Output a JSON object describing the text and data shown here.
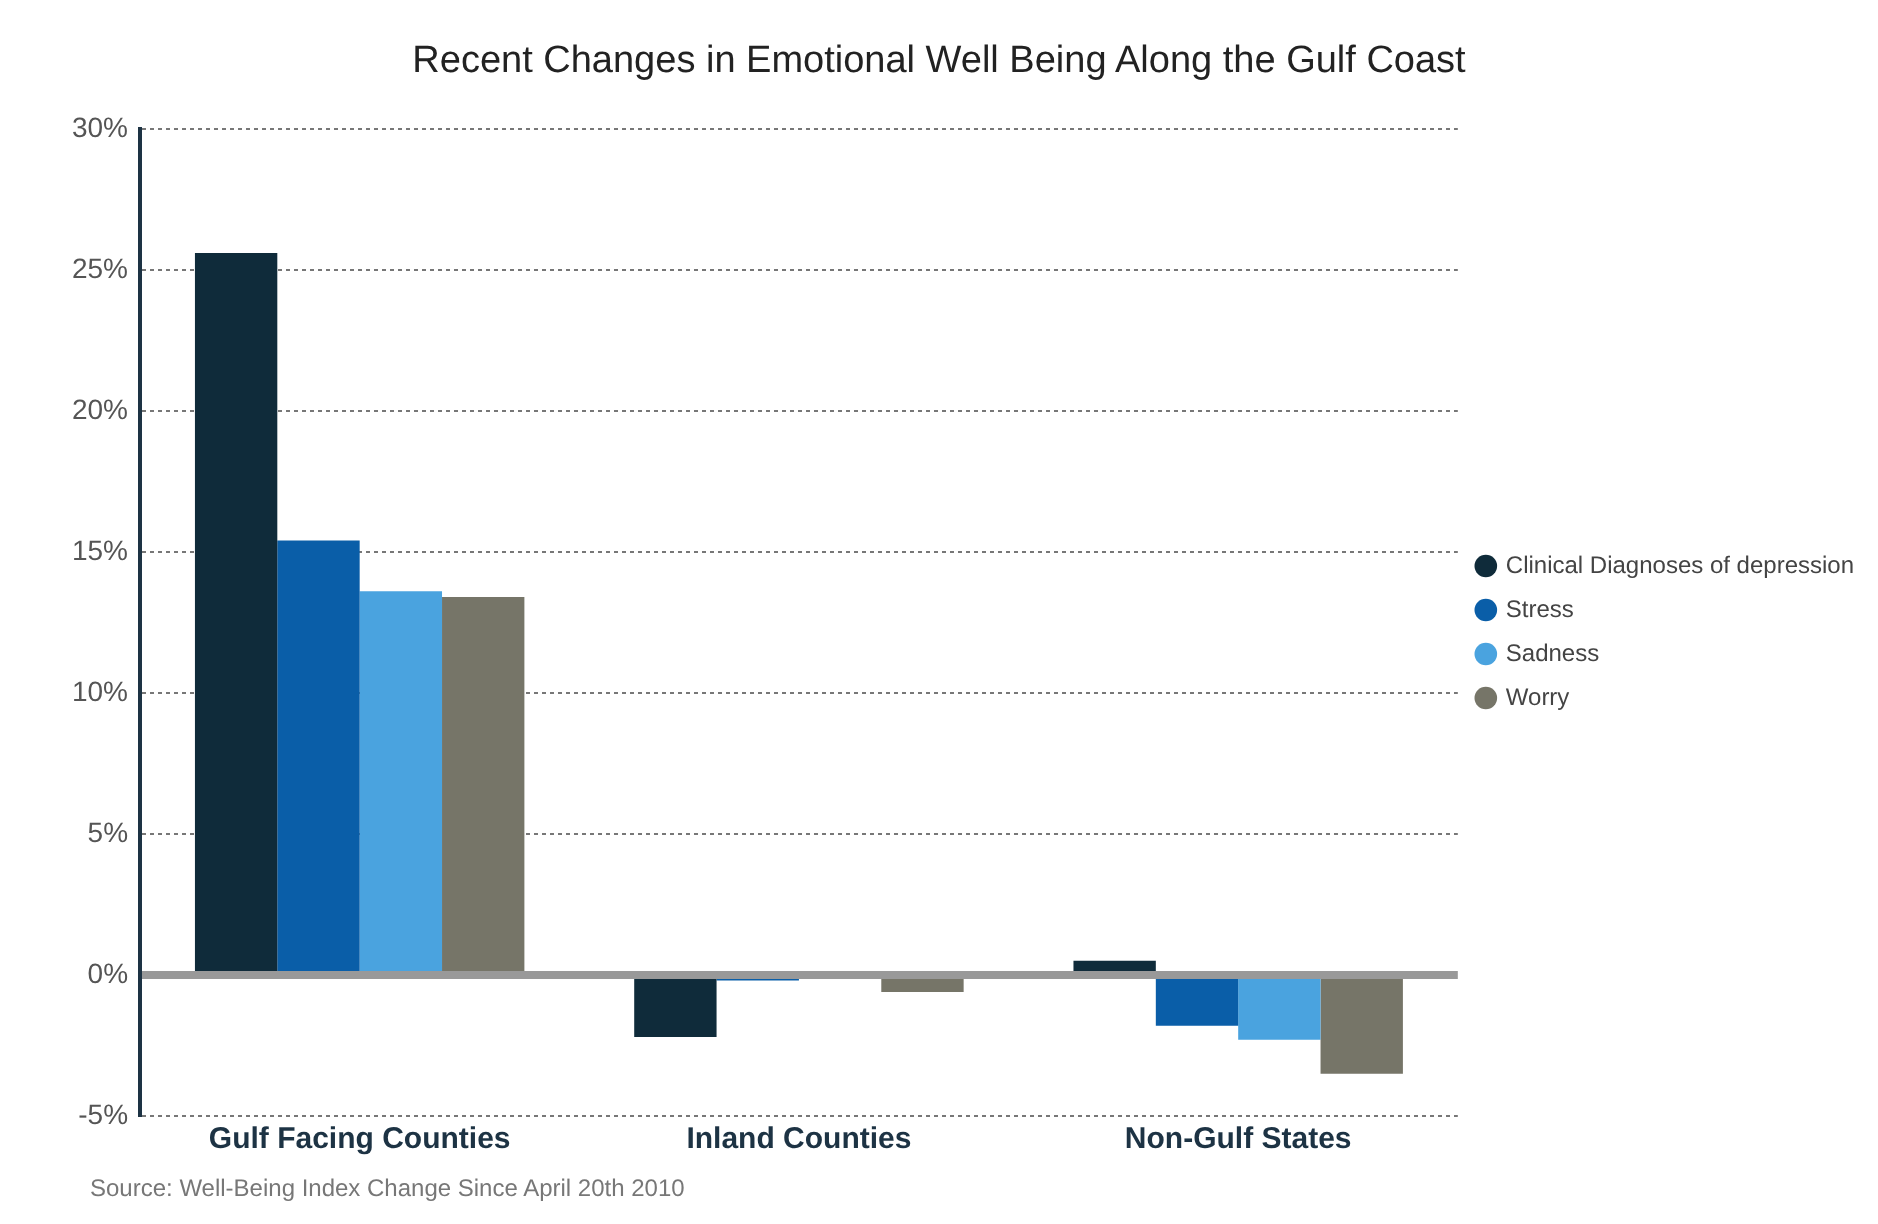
{
  "chart_data": {
    "type": "bar",
    "title": "Recent Changes in Emotional Well Being Along the Gulf Coast",
    "categories": [
      "Gulf Facing Counties",
      "Inland Counties",
      "Non-Gulf States"
    ],
    "series": [
      {
        "name": "Clinical Diagnoses of depression",
        "color": "#0f2b3a",
        "values": [
          25.6,
          -2.2,
          0.5
        ]
      },
      {
        "name": "Stress",
        "color": "#0a5ea8",
        "values": [
          15.4,
          -0.2,
          -1.8
        ]
      },
      {
        "name": "Sadness",
        "color": "#4aa3df",
        "values": [
          13.6,
          0,
          -2.3
        ]
      },
      {
        "name": "Worry",
        "color": "#767568",
        "values": [
          13.4,
          -0.6,
          -3.5
        ]
      }
    ],
    "ylim": [
      -5,
      30
    ],
    "yticks": [
      {
        "value": -5,
        "label": "-5%"
      },
      {
        "value": 0,
        "label": "0%"
      },
      {
        "value": 5,
        "label": "5%"
      },
      {
        "value": 10,
        "label": "10%"
      },
      {
        "value": 15,
        "label": "15%"
      },
      {
        "value": 20,
        "label": "20%"
      },
      {
        "value": 25,
        "label": "25%"
      },
      {
        "value": 30,
        "label": "30%"
      }
    ],
    "grid": "y",
    "legend": "right",
    "annotations": [
      "Source: Well-Being Index Change Since April 20th 2010"
    ]
  }
}
